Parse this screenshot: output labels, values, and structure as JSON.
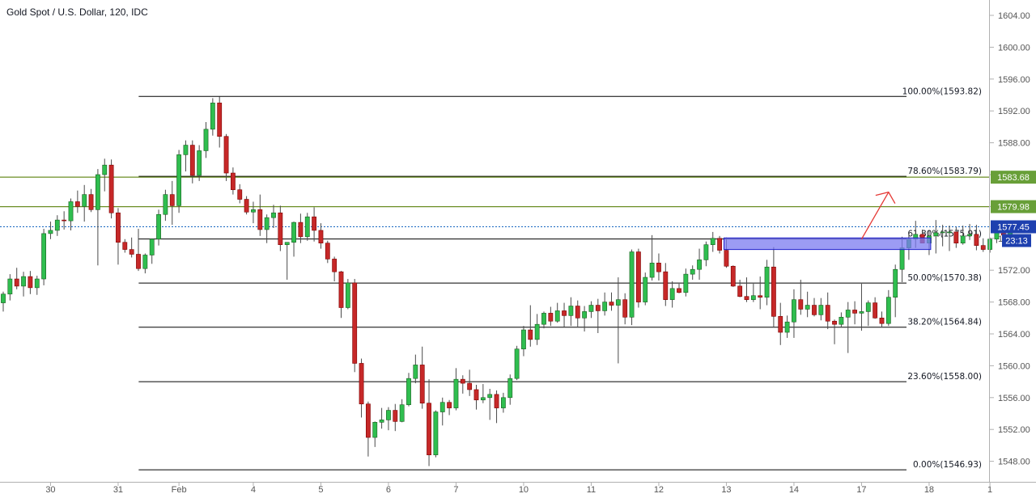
{
  "title": "Gold Spot / U.S. Dollar, 120, IDC",
  "colors": {
    "up": "#26a69a",
    "up_fill": "#2fbe4f",
    "down": "#b71c1c",
    "down_fill": "#c62828",
    "wick": "#4a4a4a",
    "fib_line": "#000000",
    "level_line": "#6b8e23",
    "level_badge": "#689f38",
    "price_badge": "#1e40af",
    "current_line": "#1565c0",
    "box_fill": "#7b7bf0",
    "box_stroke": "#1f1fcc",
    "arrow": "#e53935",
    "axis_text": "#555555",
    "grid": "#e6e6e6"
  },
  "chart_data": {
    "type": "candlestick",
    "title": "Gold Spot / U.S. Dollar, 120, IDC",
    "ylim": [
      1546,
      1606
    ],
    "y_ticks": [
      "1604.00",
      "1600.00",
      "1596.00",
      "1592.00",
      "1588.00",
      "1584.00",
      "1580.00",
      "1576.00",
      "1572.00",
      "1568.00",
      "1564.00",
      "1560.00",
      "1556.00",
      "1552.00",
      "1548.00"
    ],
    "x_ticks": [
      "30",
      "31",
      "Feb",
      "4",
      "5",
      "6",
      "7",
      "10",
      "11",
      "12",
      "13",
      "14",
      "17",
      "18",
      "1"
    ],
    "x_tick_bars": [
      7,
      17,
      26,
      37,
      47,
      57,
      67,
      77,
      87,
      97,
      107,
      117,
      127,
      137,
      146
    ],
    "bar_count_span": [
      0,
      152
    ],
    "candles": [
      [
        1567.9,
        1569.3,
        1566.8,
        1569.0
      ],
      [
        1569.0,
        1571.5,
        1568.2,
        1570.9
      ],
      [
        1570.9,
        1572.3,
        1569.6,
        1570.0
      ],
      [
        1570.0,
        1571.8,
        1568.7,
        1571.2
      ],
      [
        1571.2,
        1571.9,
        1569.0,
        1569.8
      ],
      [
        1569.8,
        1571.3,
        1568.9,
        1570.9
      ],
      [
        1570.9,
        1577.2,
        1570.1,
        1576.6
      ],
      [
        1576.6,
        1578.1,
        1575.9,
        1577.0
      ],
      [
        1577.0,
        1578.9,
        1576.3,
        1578.3
      ],
      [
        1578.3,
        1579.4,
        1577.1,
        1578.2
      ],
      [
        1578.2,
        1581.0,
        1577.0,
        1580.6
      ],
      [
        1580.6,
        1582.0,
        1579.2,
        1580.0
      ],
      [
        1580.0,
        1582.7,
        1578.1,
        1581.5
      ],
      [
        1581.5,
        1582.2,
        1579.3,
        1579.6
      ],
      [
        1579.6,
        1584.7,
        1572.6,
        1584.0
      ],
      [
        1584.0,
        1586.0,
        1581.9,
        1585.2
      ],
      [
        1585.2,
        1585.9,
        1578.5,
        1579.2
      ],
      [
        1579.2,
        1579.8,
        1572.7,
        1575.5
      ],
      [
        1575.5,
        1575.9,
        1574.2,
        1574.6
      ],
      [
        1574.6,
        1576.1,
        1573.6,
        1574.0
      ],
      [
        1574.0,
        1577.2,
        1571.9,
        1572.2
      ],
      [
        1572.2,
        1574.1,
        1571.6,
        1573.9
      ],
      [
        1573.9,
        1575.9,
        1572.8,
        1575.9
      ],
      [
        1575.9,
        1579.6,
        1575.1,
        1579.0
      ],
      [
        1579.0,
        1582.1,
        1578.2,
        1581.5
      ],
      [
        1581.5,
        1583.2,
        1577.7,
        1580.1
      ],
      [
        1580.1,
        1587.1,
        1579.2,
        1586.5
      ],
      [
        1586.5,
        1588.3,
        1584.4,
        1587.7
      ],
      [
        1587.7,
        1588.3,
        1582.9,
        1583.9
      ],
      [
        1583.9,
        1587.7,
        1583.2,
        1587.0
      ],
      [
        1587.0,
        1590.6,
        1586.1,
        1589.7
      ],
      [
        1589.7,
        1593.6,
        1588.9,
        1593.0
      ],
      [
        1593.0,
        1593.8,
        1587.4,
        1588.8
      ],
      [
        1588.8,
        1589.1,
        1583.2,
        1584.2
      ],
      [
        1584.2,
        1584.9,
        1581.5,
        1582.1
      ],
      [
        1582.1,
        1582.8,
        1580.4,
        1580.9
      ],
      [
        1580.9,
        1581.3,
        1579.0,
        1579.3
      ],
      [
        1579.3,
        1580.6,
        1577.9,
        1579.6
      ],
      [
        1579.6,
        1581.5,
        1576.3,
        1577.1
      ],
      [
        1577.1,
        1579.0,
        1575.4,
        1578.6
      ],
      [
        1578.6,
        1580.2,
        1577.3,
        1579.2
      ],
      [
        1579.2,
        1580.1,
        1574.4,
        1575.2
      ],
      [
        1575.2,
        1575.5,
        1570.8,
        1575.5
      ],
      [
        1575.5,
        1578.1,
        1573.7,
        1578.0
      ],
      [
        1578.0,
        1579.1,
        1575.4,
        1576.2
      ],
      [
        1576.2,
        1579.2,
        1575.7,
        1578.7
      ],
      [
        1578.7,
        1579.9,
        1575.6,
        1577.0
      ],
      [
        1577.0,
        1577.9,
        1574.7,
        1575.4
      ],
      [
        1575.4,
        1575.7,
        1572.9,
        1573.4
      ],
      [
        1573.4,
        1573.7,
        1570.6,
        1571.8
      ],
      [
        1571.8,
        1571.9,
        1566.0,
        1567.3
      ],
      [
        1567.3,
        1570.9,
        1567.1,
        1570.4
      ],
      [
        1570.4,
        1570.9,
        1559.2,
        1560.3
      ],
      [
        1560.3,
        1560.9,
        1553.5,
        1555.2
      ],
      [
        1555.2,
        1555.5,
        1548.6,
        1551.0
      ],
      [
        1551.0,
        1553.0,
        1549.8,
        1552.9
      ],
      [
        1552.9,
        1554.7,
        1552.1,
        1553.2
      ],
      [
        1553.2,
        1554.8,
        1551.9,
        1554.4
      ],
      [
        1554.4,
        1555.2,
        1551.8,
        1553.0
      ],
      [
        1553.0,
        1555.8,
        1552.9,
        1555.1
      ],
      [
        1555.1,
        1559.1,
        1554.9,
        1558.4
      ],
      [
        1558.4,
        1561.4,
        1557.8,
        1560.1
      ],
      [
        1560.1,
        1562.4,
        1554.6,
        1555.3
      ],
      [
        1555.3,
        1558.3,
        1547.4,
        1548.8
      ],
      [
        1548.8,
        1554.4,
        1548.5,
        1554.2
      ],
      [
        1554.2,
        1556.0,
        1552.5,
        1555.4
      ],
      [
        1555.4,
        1555.7,
        1553.8,
        1554.7
      ],
      [
        1554.7,
        1559.7,
        1554.4,
        1558.3
      ],
      [
        1558.3,
        1558.8,
        1556.5,
        1557.8
      ],
      [
        1557.8,
        1559.5,
        1556.2,
        1557.0
      ],
      [
        1557.0,
        1557.6,
        1554.5,
        1555.7
      ],
      [
        1555.7,
        1557.7,
        1555.3,
        1556.0
      ],
      [
        1556.0,
        1557.1,
        1553.2,
        1556.4
      ],
      [
        1556.4,
        1556.9,
        1552.8,
        1554.7
      ],
      [
        1554.7,
        1556.6,
        1554.1,
        1556.0
      ],
      [
        1556.0,
        1558.9,
        1555.1,
        1558.4
      ],
      [
        1558.4,
        1562.5,
        1558.2,
        1562.1
      ],
      [
        1562.1,
        1565.0,
        1561.2,
        1564.5
      ],
      [
        1564.5,
        1567.6,
        1562.4,
        1563.3
      ],
      [
        1563.3,
        1566.5,
        1562.6,
        1565.2
      ],
      [
        1565.2,
        1566.8,
        1564.7,
        1566.6
      ],
      [
        1566.6,
        1567.4,
        1565.0,
        1565.6
      ],
      [
        1565.6,
        1567.9,
        1565.4,
        1566.9
      ],
      [
        1566.9,
        1567.9,
        1564.9,
        1566.3
      ],
      [
        1566.3,
        1568.6,
        1565.0,
        1567.5
      ],
      [
        1567.5,
        1568.2,
        1564.8,
        1566.0
      ],
      [
        1566.0,
        1567.5,
        1564.3,
        1566.8
      ],
      [
        1566.8,
        1568.1,
        1566.0,
        1567.6
      ],
      [
        1567.6,
        1568.4,
        1564.1,
        1566.9
      ],
      [
        1566.9,
        1569.2,
        1566.3,
        1568.0
      ],
      [
        1568.0,
        1569.2,
        1566.9,
        1567.6
      ],
      [
        1567.6,
        1571.1,
        1560.3,
        1568.3
      ],
      [
        1568.3,
        1569.1,
        1565.2,
        1566.1
      ],
      [
        1566.1,
        1574.6,
        1565.1,
        1574.3
      ],
      [
        1574.3,
        1574.7,
        1567.3,
        1568.0
      ],
      [
        1568.0,
        1571.7,
        1567.6,
        1571.1
      ],
      [
        1571.1,
        1576.4,
        1570.7,
        1572.9
      ],
      [
        1572.9,
        1574.1,
        1570.7,
        1571.8
      ],
      [
        1571.8,
        1572.9,
        1567.5,
        1568.3
      ],
      [
        1568.3,
        1570.6,
        1567.3,
        1569.7
      ],
      [
        1569.7,
        1570.3,
        1569.1,
        1569.2
      ],
      [
        1569.2,
        1572.2,
        1568.7,
        1571.5
      ],
      [
        1571.5,
        1572.6,
        1570.8,
        1572.1
      ],
      [
        1572.1,
        1574.7,
        1570.8,
        1573.3
      ],
      [
        1573.3,
        1575.6,
        1572.5,
        1575.2
      ],
      [
        1575.2,
        1576.8,
        1574.3,
        1576.0
      ],
      [
        1576.0,
        1576.3,
        1574.1,
        1574.5
      ],
      [
        1574.5,
        1576.1,
        1572.3,
        1572.5
      ],
      [
        1572.5,
        1572.6,
        1569.9,
        1570.0
      ],
      [
        1570.0,
        1570.8,
        1568.6,
        1568.7
      ],
      [
        1568.7,
        1571.1,
        1568.0,
        1568.3
      ],
      [
        1568.3,
        1570.3,
        1568.0,
        1568.8
      ],
      [
        1568.8,
        1571.2,
        1567.1,
        1568.6
      ],
      [
        1568.6,
        1573.3,
        1567.6,
        1572.4
      ],
      [
        1572.4,
        1574.9,
        1564.8,
        1566.2
      ],
      [
        1566.2,
        1567.9,
        1562.6,
        1564.2
      ],
      [
        1564.2,
        1566.3,
        1563.5,
        1565.5
      ],
      [
        1565.5,
        1569.6,
        1563.5,
        1568.3
      ],
      [
        1568.3,
        1570.8,
        1566.4,
        1567.1
      ],
      [
        1567.1,
        1569.3,
        1566.1,
        1567.6
      ],
      [
        1567.6,
        1568.5,
        1566.2,
        1566.4
      ],
      [
        1566.4,
        1568.5,
        1565.7,
        1567.6
      ],
      [
        1567.6,
        1569.2,
        1564.6,
        1565.6
      ],
      [
        1565.6,
        1565.8,
        1562.7,
        1565.2
      ],
      [
        1565.2,
        1566.7,
        1564.8,
        1566.1
      ],
      [
        1566.1,
        1568.0,
        1561.6,
        1567.0
      ],
      [
        1567.0,
        1568.1,
        1565.2,
        1566.6
      ],
      [
        1566.6,
        1570.3,
        1564.4,
        1566.8
      ],
      [
        1566.8,
        1568.2,
        1565.0,
        1567.9
      ],
      [
        1567.9,
        1568.6,
        1565.9,
        1566.0
      ],
      [
        1566.0,
        1566.8,
        1564.8,
        1565.3
      ],
      [
        1565.3,
        1569.5,
        1565.0,
        1568.6
      ],
      [
        1568.6,
        1572.7,
        1566.1,
        1572.1
      ],
      [
        1572.1,
        1576.2,
        1570.5,
        1574.8
      ],
      [
        1574.8,
        1576.7,
        1573.3,
        1575.9
      ],
      [
        1575.9,
        1578.2,
        1574.8,
        1576.5
      ],
      [
        1576.5,
        1577.1,
        1575.5,
        1575.4
      ],
      [
        1575.4,
        1577.0,
        1573.9,
        1576.3
      ],
      [
        1576.3,
        1578.3,
        1574.1,
        1576.7
      ],
      [
        1576.7,
        1577.7,
        1575.0,
        1576.8
      ],
      [
        1576.8,
        1577.6,
        1574.4,
        1576.8
      ],
      [
        1576.8,
        1577.4,
        1574.8,
        1575.4
      ],
      [
        1575.4,
        1577.6,
        1575.2,
        1576.3
      ],
      [
        1576.3,
        1577.8,
        1575.8,
        1576.5
      ],
      [
        1576.5,
        1577.7,
        1574.5,
        1575.1
      ],
      [
        1575.1,
        1576.0,
        1574.3,
        1574.6
      ],
      [
        1574.6,
        1576.1,
        1574.2,
        1575.9
      ],
      [
        1575.9,
        1577.1,
        1575.4,
        1576.9
      ],
      [
        1576.9,
        1577.4,
        1575.7,
        1576.4
      ],
      [
        1576.4,
        1578.1,
        1576.2,
        1577.9
      ]
    ],
    "fib_levels": [
      {
        "label": "100.00%(1593.82)",
        "value": 1593.82
      },
      {
        "label": "78.60%(1583.79)",
        "value": 1583.79
      },
      {
        "label": "61.80%(1575.91)",
        "value": 1575.91
      },
      {
        "label": "50.00%(1570.38)",
        "value": 1570.38
      },
      {
        "label": "38.20%(1564.84)",
        "value": 1564.84
      },
      {
        "label": "23.60%(1558.00)",
        "value": 1558.0
      },
      {
        "label": "0.00%(1546.93)",
        "value": 1546.93
      }
    ],
    "fib_start_bar": 21,
    "fib_end_bar": 139,
    "horizontal_levels": [
      {
        "label": "1583.68",
        "value": 1583.68
      },
      {
        "label": "1579.98",
        "value": 1579.98
      }
    ],
    "current_price": {
      "label": "1577.45",
      "value": 1577.45
    },
    "countdown": "23:13",
    "zone": {
      "from_bar": 107,
      "to_bar": 134,
      "low": 1574.8,
      "high": 1575.85
    },
    "arrow": {
      "from_bar": 127,
      "from_price": 1575.9,
      "to_bar": 131,
      "to_price": 1581.8
    }
  }
}
